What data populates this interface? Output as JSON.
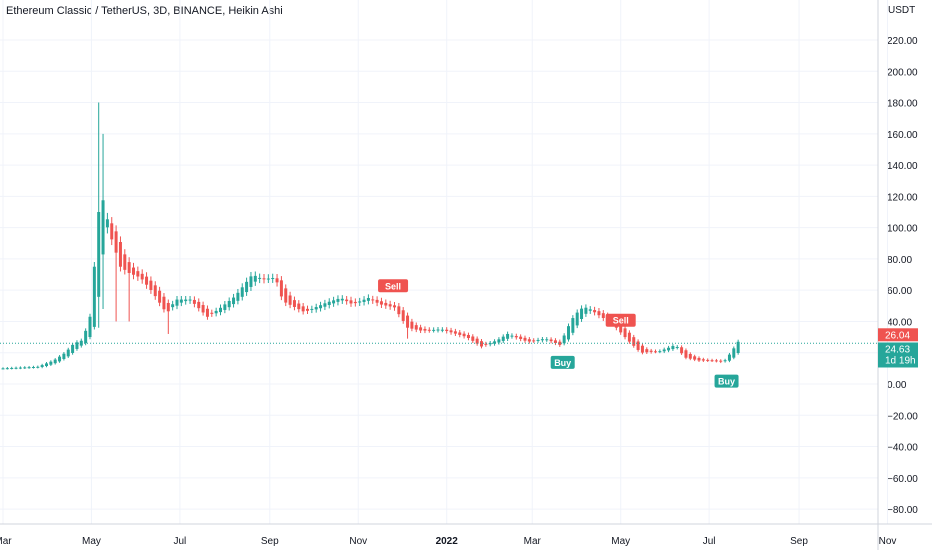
{
  "chart_title": "Ethereum Classic / TetherUS, 3D, BINANCE, Heikin Ashi",
  "currency_label": "USDT",
  "colors": {
    "up": "#26a69a",
    "down": "#ef5350",
    "grid": "#f0f3fa",
    "current": "#26a69a"
  },
  "y_ticks": [
    "220.00",
    "200.00",
    "180.00",
    "160.00",
    "140.00",
    "120.00",
    "100.00",
    "80.00",
    "60.00",
    "40.00",
    "20.00",
    "0.00",
    "−20.00",
    "−40.00",
    "−60.00",
    "−80.00"
  ],
  "x_ticks": [
    "Mar",
    "May",
    "Jul",
    "Sep",
    "Nov",
    "2022",
    "Mar",
    "May",
    "Jul",
    "Sep",
    "Nov"
  ],
  "price_tags": {
    "current_price": "26.04",
    "last_price": "24.63",
    "countdown": "1d 19h"
  },
  "signals": [
    {
      "label": "Sell",
      "type": "sell",
      "date": "2021-11-25",
      "price": 58
    },
    {
      "label": "Buy",
      "type": "buy",
      "date": "2022-03-22",
      "price": 18
    },
    {
      "label": "Sell",
      "type": "sell",
      "date": "2022-05-01",
      "price": 36
    },
    {
      "label": "Buy",
      "type": "buy",
      "date": "2022-07-13",
      "price": 6
    }
  ],
  "chart_data": {
    "type": "candlestick",
    "style": "Heikin Ashi",
    "interval": "3D",
    "y_unit": "USDT",
    "ylim": [
      -86,
      236
    ],
    "xlim": [
      "2021-03-01",
      "2022-11-04"
    ],
    "grid": true,
    "current_price": 26.04,
    "last_price": 24.63,
    "price_line": 26.04,
    "anchors": [
      [
        "2021-03-01",
        10
      ],
      [
        "2021-03-25",
        11
      ],
      [
        "2021-04-05",
        15
      ],
      [
        "2021-04-13",
        20
      ],
      [
        "2021-04-19",
        26
      ],
      [
        "2021-04-25",
        28
      ],
      [
        "2021-04-30",
        43
      ],
      [
        "2021-05-03",
        75
      ],
      [
        "2021-05-06",
        110
      ],
      [
        "2021-05-10",
        120
      ],
      [
        "2021-05-13",
        98
      ],
      [
        "2021-05-17",
        87
      ],
      [
        "2021-05-21",
        75
      ],
      [
        "2021-05-27",
        71
      ],
      [
        "2021-06-04",
        68
      ],
      [
        "2021-06-12",
        59
      ],
      [
        "2021-06-22",
        45
      ],
      [
        "2021-06-28",
        54
      ],
      [
        "2021-07-08",
        54
      ],
      [
        "2021-07-20",
        43
      ],
      [
        "2021-07-28",
        48
      ],
      [
        "2021-08-08",
        56
      ],
      [
        "2021-08-20",
        70
      ],
      [
        "2021-08-27",
        67
      ],
      [
        "2021-09-05",
        68
      ],
      [
        "2021-09-10",
        53
      ],
      [
        "2021-09-25",
        46
      ],
      [
        "2021-10-10",
        52
      ],
      [
        "2021-10-20",
        55
      ],
      [
        "2021-10-28",
        51
      ],
      [
        "2021-11-08",
        55
      ],
      [
        "2021-11-16",
        51
      ],
      [
        "2021-11-26",
        49
      ],
      [
        "2021-12-05",
        36
      ],
      [
        "2021-12-15",
        34
      ],
      [
        "2021-12-28",
        35
      ],
      [
        "2022-01-15",
        30
      ],
      [
        "2022-01-25",
        24
      ],
      [
        "2022-02-05",
        28
      ],
      [
        "2022-02-12",
        32
      ],
      [
        "2022-02-26",
        27
      ],
      [
        "2022-03-10",
        29
      ],
      [
        "2022-03-20",
        25
      ],
      [
        "2022-03-28",
        41
      ],
      [
        "2022-04-03",
        48
      ],
      [
        "2022-04-08",
        49
      ],
      [
        "2022-04-16",
        44
      ],
      [
        "2022-04-26",
        38
      ],
      [
        "2022-05-06",
        28
      ],
      [
        "2022-05-15",
        20
      ],
      [
        "2022-05-28",
        21
      ],
      [
        "2022-06-08",
        25
      ],
      [
        "2022-06-14",
        17
      ],
      [
        "2022-06-24",
        15
      ],
      [
        "2022-07-04",
        15
      ],
      [
        "2022-07-11",
        14
      ],
      [
        "2022-07-16",
        20
      ],
      [
        "2022-07-21",
        27
      ]
    ],
    "spikes": [
      [
        "2021-05-06",
        180,
        36
      ],
      [
        "2021-05-10",
        160,
        48
      ],
      [
        "2021-05-17",
        null,
        40
      ],
      [
        "2021-05-27",
        null,
        40
      ],
      [
        "2021-06-22",
        null,
        32
      ],
      [
        "2021-12-05",
        null,
        29
      ]
    ]
  }
}
